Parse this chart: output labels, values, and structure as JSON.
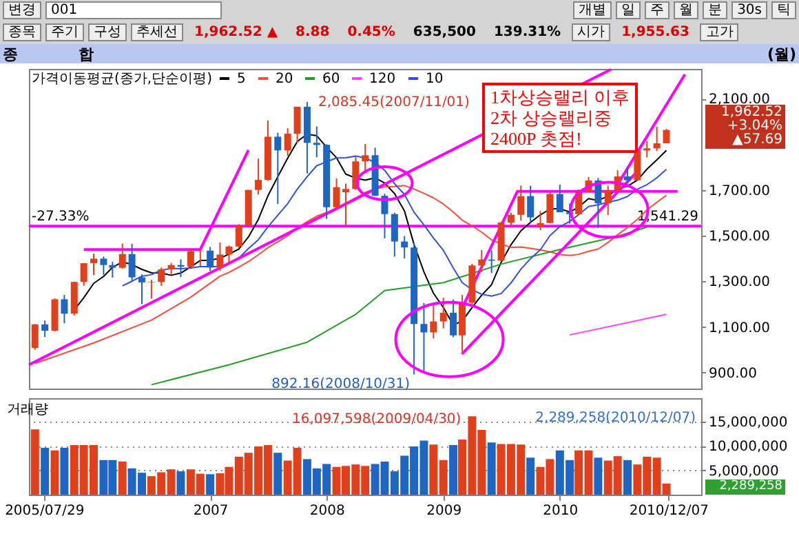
{
  "chart_data": [
    {
      "type": "candlestick",
      "title": "종 합",
      "subtitle": "(월)",
      "legend": "top left",
      "legend_title": "가격이동평균(종가,단순이평)",
      "tick_labels": "y",
      "xlim": [
        "2005-06-12",
        "2011-03-20"
      ],
      "ylim": [
        830,
        2230
      ],
      "yticks": [
        {
          "value": 900,
          "label": "900.00"
        },
        {
          "value": 1100,
          "label": "1,100.00"
        },
        {
          "value": 1300,
          "label": "1,300.00"
        },
        {
          "value": 1500,
          "label": "1,500.00"
        },
        {
          "value": 1700,
          "label": "1,700.00"
        },
        {
          "value": 2100,
          "label": "2,100.00"
        }
      ],
      "x": [
        "2005-07",
        "2005-08",
        "2005-09",
        "2005-10",
        "2005-11",
        "2005-12",
        "2006-01",
        "2006-02",
        "2006-03",
        "2006-04",
        "2006-05",
        "2006-06",
        "2006-07",
        "2006-08",
        "2006-09",
        "2006-10",
        "2006-11",
        "2006-12",
        "2007-01",
        "2007-02",
        "2007-03",
        "2007-04",
        "2007-05",
        "2007-06",
        "2007-07",
        "2007-08",
        "2007-09",
        "2007-10",
        "2007-11",
        "2007-12",
        "2008-01",
        "2008-02",
        "2008-03",
        "2008-04",
        "2008-05",
        "2008-06",
        "2008-07",
        "2008-08",
        "2008-09",
        "2008-10",
        "2008-11",
        "2008-12",
        "2009-01",
        "2009-02",
        "2009-03",
        "2009-04",
        "2009-05",
        "2009-06",
        "2009-07",
        "2009-08",
        "2009-09",
        "2009-10",
        "2009-11",
        "2009-12",
        "2010-01",
        "2010-02",
        "2010-03",
        "2010-04",
        "2010-05",
        "2010-06",
        "2010-07",
        "2010-08",
        "2010-09",
        "2010-10",
        "2010-11",
        "2010-12"
      ],
      "ohlc": [
        [
          1008,
          1113,
          1000,
          1111
        ],
        [
          1111,
          1128,
          1056,
          1083
        ],
        [
          1083,
          1225,
          1080,
          1221
        ],
        [
          1221,
          1240,
          1116,
          1158
        ],
        [
          1158,
          1298,
          1150,
          1297
        ],
        [
          1297,
          1380,
          1280,
          1379
        ],
        [
          1379,
          1421,
          1327,
          1399
        ],
        [
          1399,
          1408,
          1328,
          1371
        ],
        [
          1371,
          1385,
          1316,
          1359
        ],
        [
          1359,
          1465,
          1355,
          1419
        ],
        [
          1419,
          1464,
          1300,
          1317
        ],
        [
          1317,
          1330,
          1200,
          1295
        ],
        [
          1295,
          1306,
          1224,
          1297
        ],
        [
          1297,
          1360,
          1280,
          1352
        ],
        [
          1352,
          1380,
          1328,
          1371
        ],
        [
          1371,
          1396,
          1318,
          1364
        ],
        [
          1364,
          1440,
          1359,
          1432
        ],
        [
          1432,
          1440,
          1367,
          1434
        ],
        [
          1434,
          1450,
          1345,
          1360
        ],
        [
          1360,
          1470,
          1345,
          1417
        ],
        [
          1417,
          1456,
          1380,
          1452
        ],
        [
          1452,
          1550,
          1446,
          1542
        ],
        [
          1542,
          1700,
          1540,
          1700
        ],
        [
          1700,
          1837,
          1680,
          1744
        ],
        [
          1744,
          2004,
          1740,
          1933
        ],
        [
          1933,
          1950,
          1638,
          1873
        ],
        [
          1873,
          1970,
          1849,
          1946
        ],
        [
          1946,
          2064,
          1905,
          2064
        ],
        [
          2064,
          2085.45,
          1772,
          1906
        ],
        [
          1906,
          1978,
          1843,
          1897
        ],
        [
          1897,
          1900,
          1573,
          1624
        ],
        [
          1624,
          1750,
          1624,
          1712
        ],
        [
          1690,
          1727,
          1537,
          1704
        ],
        [
          1704,
          1845,
          1700,
          1825
        ],
        [
          1825,
          1901,
          1780,
          1852
        ],
        [
          1852,
          1885,
          1674,
          1674
        ],
        [
          1674,
          1683,
          1488,
          1594
        ],
        [
          1594,
          1600,
          1408,
          1474
        ],
        [
          1474,
          1498,
          1400,
          1448
        ],
        [
          1448,
          1470,
          892.16,
          1113
        ],
        [
          1113,
          1205,
          900,
          1076
        ],
        [
          1076,
          1200,
          1050,
          1124
        ],
        [
          1124,
          1228,
          1094,
          1162
        ],
        [
          1162,
          1220,
          1055,
          1063
        ],
        [
          1063,
          1240,
          992,
          1206
        ],
        [
          1206,
          1376,
          1200,
          1369
        ],
        [
          1369,
          1437,
          1340,
          1395
        ],
        [
          1395,
          1435,
          1336,
          1390
        ],
        [
          1390,
          1561,
          1390,
          1557
        ],
        [
          1557,
          1600,
          1538,
          1591
        ],
        [
          1591,
          1719,
          1565,
          1673
        ],
        [
          1673,
          1718,
          1557,
          1580
        ],
        [
          1540,
          1607,
          1524,
          1555
        ],
        [
          1555,
          1690,
          1555,
          1682
        ],
        [
          1682,
          1723,
          1602,
          1602
        ],
        [
          1602,
          1640,
          1552,
          1594
        ],
        [
          1594,
          1702,
          1594,
          1692
        ],
        [
          1692,
          1757,
          1690,
          1741
        ],
        [
          1741,
          1752,
          1533,
          1641
        ],
        [
          1641,
          1718,
          1590,
          1698
        ],
        [
          1698,
          1786,
          1690,
          1759
        ],
        [
          1759,
          1800,
          1729,
          1742
        ],
        [
          1742,
          1873,
          1742,
          1873
        ],
        [
          1873,
          1914,
          1842,
          1882
        ],
        [
          1882,
          1977,
          1870,
          1904
        ],
        [
          1904,
          1967,
          1904,
          1962.52
        ]
      ],
      "colors": [
        "#e0401c",
        "#1f66c2",
        "#e0401c",
        "#1f66c2",
        "#e0401c",
        "#e0401c",
        "#e0401c",
        "#1f66c2",
        "#1f66c2",
        "#e0401c",
        "#1f66c2",
        "#1f66c2",
        "#e0401c",
        "#e0401c",
        "#e0401c",
        "#1f66c2",
        "#e0401c",
        "#e0401c",
        "#1f66c2",
        "#e0401c",
        "#e0401c",
        "#e0401c",
        "#e0401c",
        "#e0401c",
        "#e0401c",
        "#1f66c2",
        "#e0401c",
        "#e0401c",
        "#1f66c2",
        "#1f66c2",
        "#1f66c2",
        "#e0401c",
        "#e0401c",
        "#e0401c",
        "#e0401c",
        "#1f66c2",
        "#1f66c2",
        "#1f66c2",
        "#1f66c2",
        "#1f66c2",
        "#1f66c2",
        "#e0401c",
        "#e0401c",
        "#1f66c2",
        "#e0401c",
        "#e0401c",
        "#e0401c",
        "#1f66c2",
        "#e0401c",
        "#e0401c",
        "#e0401c",
        "#1f66c2",
        "#e0401c",
        "#e0401c",
        "#1f66c2",
        "#1f66c2",
        "#e0401c",
        "#e0401c",
        "#1f66c2",
        "#e0401c",
        "#e0401c",
        "#1f66c2",
        "#e0401c",
        "#e0401c",
        "#e0401c",
        "#e0401c"
      ],
      "series": [
        {
          "name": "5",
          "type": "line",
          "color": "#000000",
          "x": [
            "2005-11",
            "2005-12",
            "2006-01",
            "2006-02",
            "2006-03",
            "2006-04",
            "2006-05",
            "2006-06",
            "2006-07",
            "2006-08",
            "2006-09",
            "2006-10",
            "2006-11",
            "2006-12",
            "2007-01",
            "2007-02",
            "2007-03",
            "2007-04",
            "2007-05",
            "2007-06",
            "2007-07",
            "2007-08",
            "2007-09",
            "2007-10",
            "2007-11",
            "2007-12",
            "2008-01",
            "2008-02",
            "2008-03",
            "2008-04",
            "2008-05",
            "2008-06",
            "2008-07",
            "2008-08",
            "2008-09",
            "2008-10",
            "2008-11",
            "2008-12",
            "2009-01",
            "2009-02",
            "2009-03",
            "2009-04",
            "2009-05",
            "2009-06",
            "2009-07",
            "2009-08",
            "2009-09",
            "2009-10",
            "2009-11",
            "2009-12",
            "2010-01",
            "2010-02",
            "2010-03",
            "2010-04",
            "2010-05",
            "2010-06",
            "2010-07",
            "2010-08",
            "2010-09",
            "2010-10",
            "2010-11",
            "2010-12"
          ],
          "values": [
            1174,
            1228,
            1291,
            1321,
            1361,
            1385,
            1373,
            1352,
            1337,
            1336,
            1326,
            1336,
            1363,
            1391,
            1392,
            1401,
            1419,
            1441,
            1494,
            1571,
            1674,
            1758,
            1839,
            1912,
            1944,
            1937,
            1887,
            1841,
            1769,
            1752,
            1743,
            1753,
            1730,
            1684,
            1608,
            1461,
            1341,
            1247,
            1185,
            1108,
            1126,
            1185,
            1239,
            1285,
            1383,
            1460,
            1521,
            1558,
            1591,
            1616,
            1618,
            1603,
            1625,
            1662,
            1654,
            1673,
            1706,
            1716,
            1743,
            1791,
            1832,
            1873
          ]
        },
        {
          "name": "20",
          "type": "line",
          "color": "#ff4a3a",
          "x": [
            "2005-07",
            "2006-01",
            "2006-07",
            "2006-11",
            "2007-02",
            "2007-03",
            "2007-04",
            "2007-05",
            "2007-06",
            "2007-07",
            "2007-08",
            "2007-09",
            "2007-10",
            "2007-11",
            "2007-12",
            "2008-01",
            "2008-02",
            "2008-03",
            "2008-04",
            "2008-05",
            "2008-06",
            "2008-07",
            "2008-08",
            "2008-09",
            "2008-10",
            "2008-11",
            "2008-12",
            "2009-01",
            "2009-02",
            "2009-03",
            "2009-04",
            "2009-05",
            "2009-06",
            "2009-07",
            "2009-08",
            "2009-09",
            "2009-10",
            "2009-11",
            "2009-12",
            "2010-01",
            "2010-02",
            "2010-03",
            "2010-04",
            "2010-05",
            "2010-06",
            "2010-07",
            "2010-08",
            "2010-09",
            "2010-10",
            "2010-11",
            "2010-12"
          ],
          "values": [
            940,
            1030,
            1130,
            1230,
            1322,
            1339,
            1362,
            1386,
            1416,
            1447,
            1472,
            1499,
            1534,
            1561,
            1585,
            1601,
            1621,
            1642,
            1665,
            1689,
            1705,
            1713,
            1715,
            1719,
            1704,
            1685,
            1665,
            1638,
            1603,
            1567,
            1542,
            1515,
            1481,
            1463,
            1448,
            1450,
            1444,
            1437,
            1429,
            1417,
            1413,
            1418,
            1431,
            1441,
            1470,
            1504,
            1535,
            1571,
            1612,
            1646,
            1676
          ]
        },
        {
          "name": "60",
          "type": "line",
          "color": "#22a022",
          "x": [
            "2006-07",
            "2007-03",
            "2007-11",
            "2008-04",
            "2008-07",
            "2009-01",
            "2009-07",
            "2010-01",
            "2010-07",
            "2010-10"
          ],
          "values": [
            847,
            934,
            1033,
            1155,
            1259,
            1294,
            1375,
            1439,
            1497,
            1537
          ]
        },
        {
          "name": "120",
          "type": "line",
          "color": "#ff40ff",
          "x": [
            "2010-02",
            "2010-12"
          ],
          "values": [
            1065,
            1155
          ]
        },
        {
          "name": "10",
          "type": "line",
          "color": "#3050e0",
          "x": [
            "2006-04",
            "2006-05",
            "2006-06",
            "2006-07",
            "2006-08",
            "2006-09",
            "2006-10",
            "2006-11",
            "2006-12",
            "2007-01",
            "2007-02",
            "2007-03",
            "2007-04",
            "2007-05",
            "2007-06",
            "2007-07",
            "2007-08",
            "2007-09",
            "2007-10",
            "2007-11",
            "2007-12",
            "2008-01",
            "2008-02",
            "2008-03",
            "2008-04",
            "2008-05",
            "2008-06",
            "2008-07",
            "2008-08",
            "2008-09",
            "2008-10",
            "2008-11",
            "2008-12",
            "2009-01",
            "2009-02",
            "2009-03",
            "2009-04",
            "2009-05",
            "2009-06",
            "2009-07",
            "2009-08",
            "2009-09",
            "2009-10",
            "2009-11",
            "2009-12",
            "2010-01",
            "2010-02",
            "2010-03",
            "2010-04",
            "2010-05",
            "2010-06",
            "2010-07",
            "2010-08",
            "2010-09",
            "2010-10",
            "2010-11",
            "2010-12"
          ],
          "values": [
            1280,
            1300,
            1322,
            1329,
            1349,
            1356,
            1355,
            1358,
            1364,
            1364,
            1364,
            1378,
            1402,
            1443,
            1482,
            1538,
            1589,
            1640,
            1703,
            1758,
            1806,
            1823,
            1840,
            1841,
            1848,
            1840,
            1820,
            1786,
            1727,
            1680,
            1602,
            1547,
            1489,
            1435,
            1358,
            1294,
            1263,
            1243,
            1235,
            1246,
            1293,
            1353,
            1399,
            1438,
            1500,
            1539,
            1562,
            1592,
            1627,
            1635,
            1646,
            1655,
            1671,
            1703,
            1723,
            1753,
            1790
          ]
        },
        {
          "type": "line",
          "color": "#ff00ff",
          "x": [
            "2005-06-12",
            "2010-06-10"
          ],
          "values": [
            934,
            2228
          ]
        },
        {
          "type": "line",
          "color": "#ff00ff",
          "x": [
            "2005-12-01",
            "2006-12-01",
            "2007-05-01"
          ],
          "values": [
            1439,
            1439,
            1874
          ]
        },
        {
          "type": "line",
          "color": "#ff00ff",
          "x": [
            "2009-02-28",
            "2010-08-28"
          ],
          "values": [
            981,
            1775
          ]
        },
        {
          "type": "line",
          "color": "#ff00ff",
          "x": [
            "2009-03-03",
            "2009-08-21",
            "2011-01-05"
          ],
          "values": [
            1189,
            1694,
            1694
          ]
        },
        {
          "type": "line",
          "color": "#ff00ff",
          "x": [
            "2010-07-06",
            "2011-01-28"
          ],
          "values": [
            1735,
            2206
          ]
        }
      ],
      "ref_lines": [
        {
          "axis": "y",
          "value": 1541.29,
          "label": "1,541.29",
          "color": "#ff00ff"
        }
      ],
      "annotations": [
        "변경",
        "001",
        "개별",
        "일",
        "주",
        "월",
        "분",
        "30s",
        "틱",
        "종목",
        "주기",
        "구성",
        "추세선",
        "1,962.52 ▲",
        "8.88",
        "0.45%",
        "635,500",
        "139.31%",
        "시가",
        "1,955.63",
        "고가",
        "1차상승랠리 이후\n2차 상승랠리중\n2400P 촛점!",
        "-27.33%",
        {
          "text": "2,085.45(2007/11/01)",
          "x": "2007-11",
          "y": 2085.45
        },
        {
          "text": "892.16(2008/10/31)",
          "x": "2008-10",
          "y": 892.16
        },
        "1,962.52",
        "+3.04%",
        "▲57.69"
      ]
    },
    {
      "type": "bar",
      "title": "거래량",
      "grid": "y",
      "xlim": [
        "2005-06-12",
        "2011-03-20"
      ],
      "ylim": [
        0,
        19800000
      ],
      "xticks": [
        {
          "value": "2005-07-29",
          "label": "2005/07/29"
        },
        {
          "value": "2007-01",
          "label": "2007"
        },
        {
          "value": "2008-01",
          "label": "2008"
        },
        {
          "value": "2009-01",
          "label": "2009"
        },
        {
          "value": "2010-01",
          "label": "2010"
        },
        {
          "value": "2010-12-07",
          "label": "2010/12/07"
        }
      ],
      "yticks": [
        {
          "value": 5000000,
          "label": "5,000,000"
        },
        {
          "value": 10000000,
          "label": "10,000,000"
        },
        {
          "value": 15000000,
          "label": "15,000,000"
        }
      ],
      "x": [
        "2005-07",
        "2005-08",
        "2005-09",
        "2005-10",
        "2005-11",
        "2005-12",
        "2006-01",
        "2006-02",
        "2006-03",
        "2006-04",
        "2006-05",
        "2006-06",
        "2006-07",
        "2006-08",
        "2006-09",
        "2006-10",
        "2006-11",
        "2006-12",
        "2007-01",
        "2007-02",
        "2007-03",
        "2007-04",
        "2007-05",
        "2007-06",
        "2007-07",
        "2007-08",
        "2007-09",
        "2007-10",
        "2007-11",
        "2007-12",
        "2008-01",
        "2008-02",
        "2008-03",
        "2008-04",
        "2008-05",
        "2008-06",
        "2008-07",
        "2008-08",
        "2008-09",
        "2008-10",
        "2008-11",
        "2008-12",
        "2009-01",
        "2009-02",
        "2009-03",
        "2009-04",
        "2009-05",
        "2009-06",
        "2009-07",
        "2009-08",
        "2009-09",
        "2009-10",
        "2009-11",
        "2009-12",
        "2010-01",
        "2010-02",
        "2010-03",
        "2010-04",
        "2010-05",
        "2010-06",
        "2010-07",
        "2010-08",
        "2010-09",
        "2010-10",
        "2010-11",
        "2010-12"
      ],
      "values": [
        13400000,
        9600000,
        9100000,
        9600000,
        10200000,
        10200000,
        10200000,
        7100000,
        7100000,
        6800000,
        5400000,
        4500000,
        3800000,
        4600000,
        5200000,
        4800000,
        5200000,
        4300000,
        4200000,
        4400000,
        5700000,
        7800000,
        8600000,
        9900000,
        10200000,
        8600000,
        7000000,
        9600000,
        7300000,
        5400000,
        6300000,
        5700000,
        5900000,
        6200000,
        5900000,
        6300000,
        6800000,
        4800000,
        8000000,
        9900000,
        11100000,
        10300000,
        7100000,
        10200000,
        11300000,
        16097598,
        13300000,
        10700000,
        10400000,
        10400000,
        10300000,
        7600000,
        5700000,
        7300000,
        9100000,
        7100000,
        9100000,
        9100000,
        7600000,
        7000000,
        7900000,
        7100000,
        6200000,
        7800000,
        7600000,
        2289258
      ],
      "colors": [
        "#e0401c",
        "#1f66c2",
        "#e0401c",
        "#1f66c2",
        "#e0401c",
        "#e0401c",
        "#e0401c",
        "#1f66c2",
        "#1f66c2",
        "#e0401c",
        "#1f66c2",
        "#1f66c2",
        "#e0401c",
        "#e0401c",
        "#e0401c",
        "#1f66c2",
        "#e0401c",
        "#e0401c",
        "#1f66c2",
        "#e0401c",
        "#e0401c",
        "#e0401c",
        "#e0401c",
        "#e0401c",
        "#e0401c",
        "#1f66c2",
        "#e0401c",
        "#e0401c",
        "#1f66c2",
        "#1f66c2",
        "#1f66c2",
        "#e0401c",
        "#e0401c",
        "#e0401c",
        "#e0401c",
        "#1f66c2",
        "#1f66c2",
        "#1f66c2",
        "#1f66c2",
        "#1f66c2",
        "#1f66c2",
        "#e0401c",
        "#e0401c",
        "#1f66c2",
        "#e0401c",
        "#e0401c",
        "#e0401c",
        "#1f66c2",
        "#e0401c",
        "#e0401c",
        "#e0401c",
        "#1f66c2",
        "#e0401c",
        "#e0401c",
        "#1f66c2",
        "#1f66c2",
        "#e0401c",
        "#e0401c",
        "#1f66c2",
        "#e0401c",
        "#e0401c",
        "#1f66c2",
        "#e0401c",
        "#e0401c",
        "#e0401c",
        "#e0401c"
      ],
      "annotations": [
        {
          "text": "16,097,598(2009/04/30)",
          "x": "2009-04",
          "y": 16097598
        },
        "2,289,258(2010/12/07)",
        "2,289,258"
      ]
    }
  ]
}
